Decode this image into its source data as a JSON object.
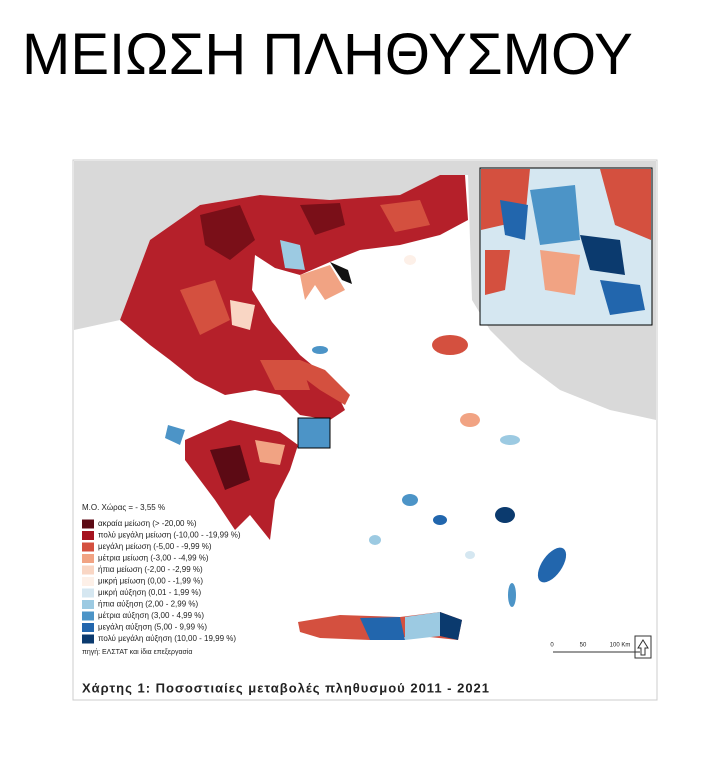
{
  "title": "ΜΕΙΩΣΗ ΠΛΗΘΥΣΜΟΥ",
  "map": {
    "average": "Μ.Ο. Χώρας = - 3,55 %",
    "legend": [
      {
        "label": "ακραία μείωση (> -20,00 %)",
        "color": "#5c0a14"
      },
      {
        "label": "πολύ μεγάλη μείωση (-10,00 - -19,99 %)",
        "color": "#a5121e"
      },
      {
        "label": "μεγάλη μείωση (-5,00 - -9,99 %)",
        "color": "#d4503f"
      },
      {
        "label": "μέτρια μείωση (-3,00 - -4,99 %)",
        "color": "#f1a383"
      },
      {
        "label": "ήπια μείωση (-2,00 - -2,99 %)",
        "color": "#f9d6c4"
      },
      {
        "label": "μικρή μείωση (0,00 - -1,99 %)",
        "color": "#fdf0e8"
      },
      {
        "label": "μικρή αύξηση (0,01 - 1,99 %)",
        "color": "#d5e7f1"
      },
      {
        "label": "ήπια αύξηση (2,00 - 2,99 %)",
        "color": "#9ccae2"
      },
      {
        "label": "μέτρια αύξηση (3,00 - 4,99 %)",
        "color": "#4c94c7"
      },
      {
        "label": "μεγάλη αύξηση (5,00 - 9,99 %)",
        "color": "#2266ad"
      },
      {
        "label": "πολύ μεγάλη αύξηση (10,00 - 19,99 %)",
        "color": "#0b3a6e"
      }
    ],
    "source": "πηγή: ΕΛΣΤΑΤ και ίδια επεξεργασία",
    "scale_labels": [
      "0",
      "50",
      "100 Km"
    ],
    "caption": "Χάρτης 1: Ποσοστιαίες μεταβολές πληθυσμού 2011 - 2021"
  }
}
